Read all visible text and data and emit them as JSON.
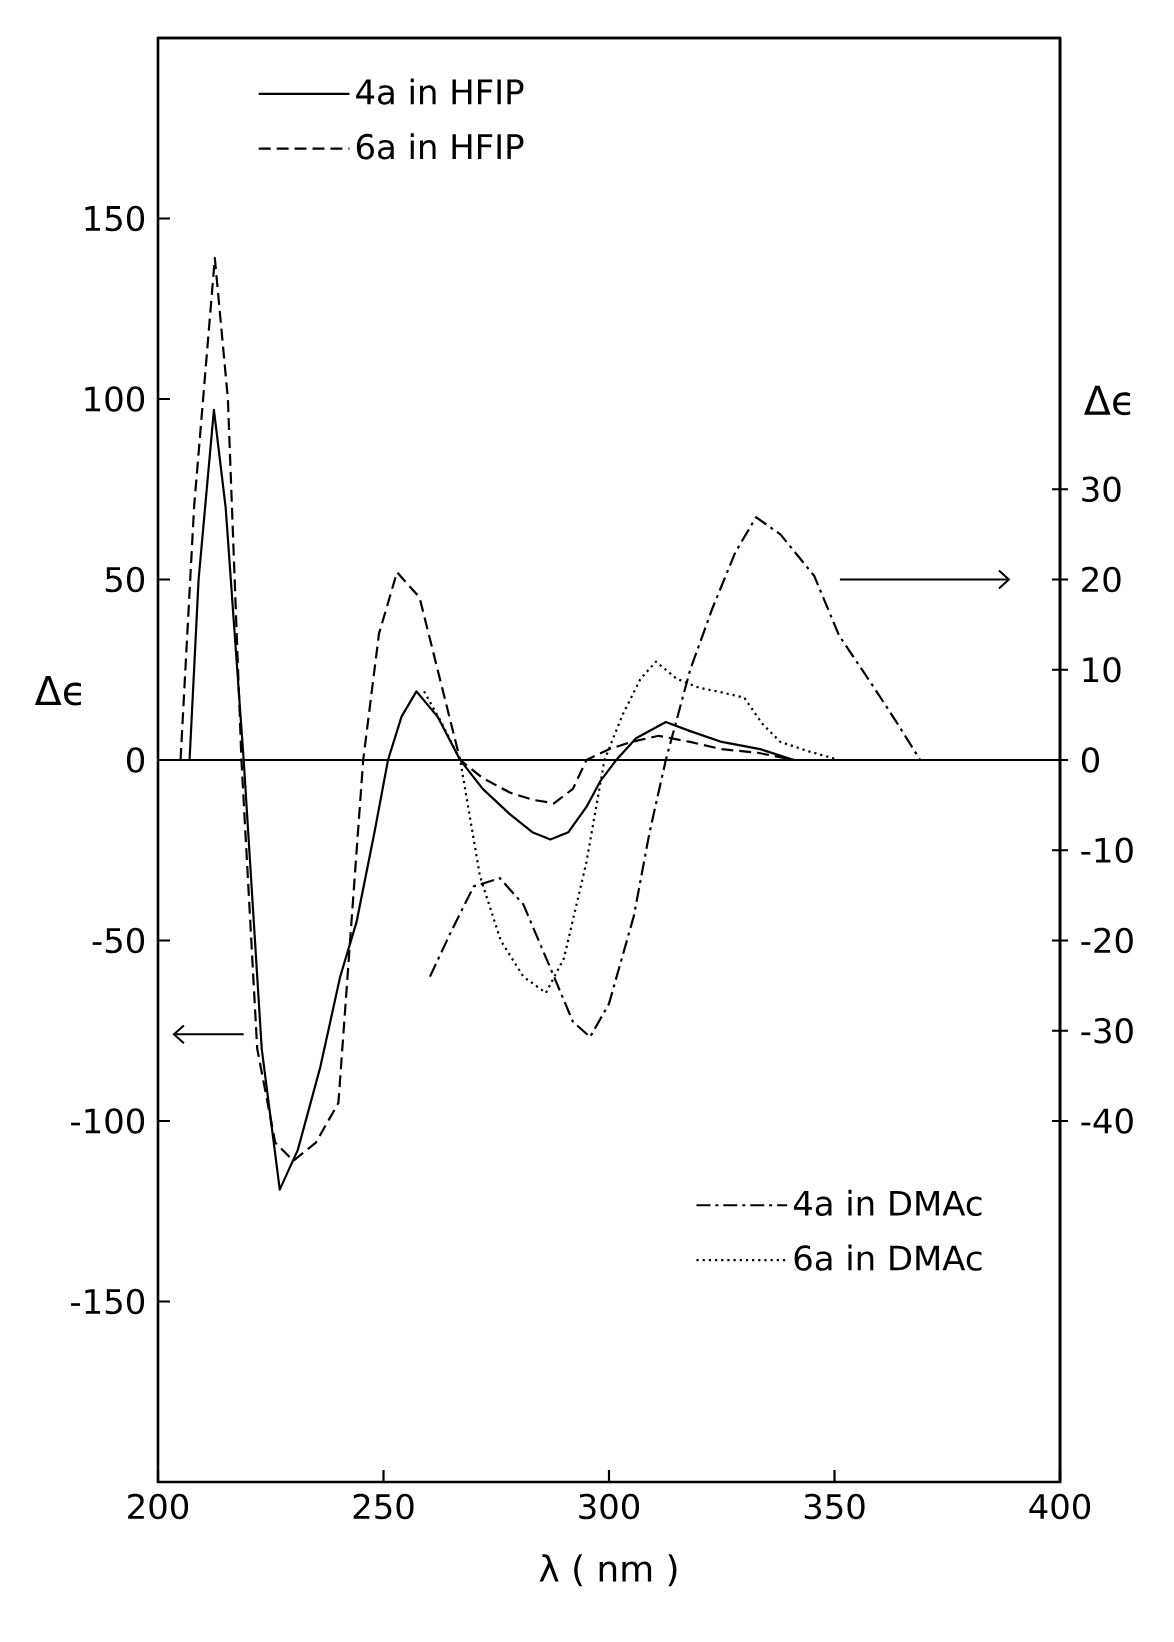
{
  "chart_data": {
    "type": "line",
    "xlabel": "λ ( nm )",
    "ylabel": "Δϵ",
    "y2label": "Δϵ",
    "xlim": [
      200,
      400
    ],
    "xticks": [
      200,
      250,
      300,
      350,
      400
    ],
    "ylim": [
      -200,
      200
    ],
    "yticks": [
      -150,
      -100,
      -50,
      0,
      50,
      100,
      150
    ],
    "y2lim": [
      -80,
      80
    ],
    "y2ticks": [
      -40,
      -30,
      -20,
      -10,
      0,
      10,
      20,
      30
    ],
    "legend": "top left",
    "ref_lines": [
      {
        "axis": "y",
        "value": 0,
        "color": "#000000"
      }
    ],
    "series": [
      {
        "name": "4a in HFIP",
        "color": "#000000",
        "line_style": "solid",
        "x": [
          207,
          209,
          212.4,
          215,
          219,
          223,
          227,
          231,
          236,
          240.4,
          244,
          248,
          251,
          254,
          257.3,
          262,
          267,
          272,
          278,
          283,
          287,
          291,
          295,
          298,
          301.6,
          306,
          312.6,
          318,
          325,
          333.5,
          341
        ],
        "values": [
          0,
          50,
          97,
          70,
          0,
          -80,
          -119,
          -108,
          -85,
          -60,
          -45,
          -20,
          0,
          12,
          19,
          12,
          0,
          -8,
          -15,
          -20,
          -22,
          -20,
          -13,
          -6,
          0,
          6,
          10.5,
          8,
          5,
          3,
          0
        ]
      },
      {
        "name": "6a in HFIP",
        "color": "#000000",
        "line_style": "dashed",
        "x": [
          205,
          208,
          212.6,
          215.5,
          218.5,
          222,
          226,
          230,
          235,
          240,
          242.6,
          245.5,
          249,
          253,
          258,
          263,
          267,
          272,
          278,
          283,
          287.8,
          292,
          295,
          300,
          305,
          311,
          318,
          325,
          333,
          341
        ],
        "values": [
          0,
          70,
          139,
          100,
          0,
          -80,
          -106,
          -111,
          -106,
          -95,
          -50,
          0,
          35,
          52,
          45,
          20,
          0,
          -5,
          -9,
          -11,
          -12,
          -8,
          0,
          3,
          5,
          6.7,
          5,
          3,
          2,
          0
        ]
      },
      {
        "name": "4a in DMAc",
        "color": "#000000",
        "line_style": "dashdot",
        "axis": "y2",
        "x": [
          260.3,
          265,
          270,
          275.8,
          281,
          287.8,
          292,
          295.8,
          300,
          305.5,
          309,
          312.6,
          318,
          323,
          328,
          332.6,
          338,
          345.5,
          351,
          358.8,
          364,
          369
        ],
        "values": [
          -24,
          -19,
          -14,
          -13.1,
          -16,
          -24,
          -29,
          -30.7,
          -27,
          -17.3,
          -8,
          0,
          10,
          16.9,
          23,
          26.9,
          25,
          20.4,
          13.8,
          8,
          4,
          0
        ]
      },
      {
        "name": "6a in DMAc",
        "color": "#000000",
        "line_style": "dotted",
        "axis": "y2",
        "x": [
          259,
          263,
          267,
          271.4,
          276,
          281,
          286,
          290,
          295,
          299,
          303,
          307,
          310.4,
          315,
          320,
          325,
          330,
          334,
          338,
          344,
          351
        ],
        "values": [
          7.6,
          4,
          0,
          -12.9,
          -20,
          -24,
          -25.8,
          -22,
          -11.3,
          0,
          5,
          9,
          10.9,
          9,
          8,
          7.5,
          6.9,
          4,
          2,
          1,
          0
        ]
      }
    ]
  }
}
